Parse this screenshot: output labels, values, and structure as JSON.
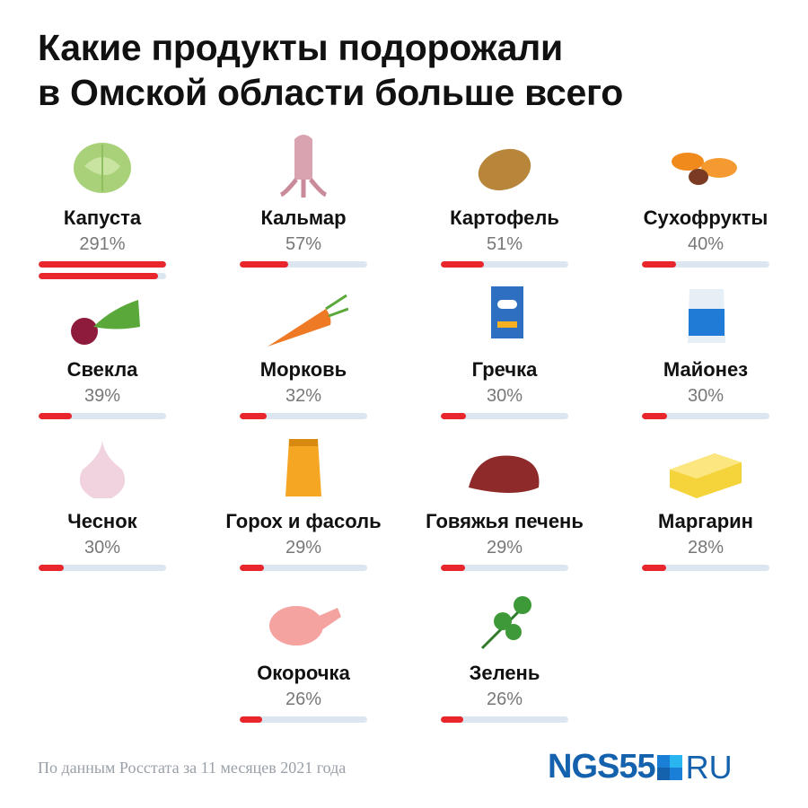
{
  "title_line1": "Какие продукты подорожали",
  "title_line2": "в Омской области больше всего",
  "footer": "По данным Росстата за 11 месяцев 2021 года",
  "logo": {
    "main": "NGS55",
    "suffix": "RU"
  },
  "colors": {
    "bar": "#e8262b",
    "track": "#dbe6f1",
    "brand": "#1461ad"
  },
  "chart_data": {
    "type": "bar",
    "title": "Какие продукты подорожали в Омской области больше всего",
    "bar_scale_max": 150,
    "categories": [
      "Капуста",
      "Кальмар",
      "Картофель",
      "Сухофрукты",
      "Свекла",
      "Морковь",
      "Гречка",
      "Майонез",
      "Чеснок",
      "Горох и фасоль",
      "Говяжья печень",
      "Маргарин",
      "Окорочка",
      "Зелень"
    ],
    "values": [
      291,
      57,
      51,
      40,
      39,
      32,
      30,
      30,
      30,
      29,
      29,
      28,
      26,
      26
    ],
    "labels": [
      "291%",
      "57%",
      "51%",
      "40%",
      "39%",
      "32%",
      "30%",
      "30%",
      "30%",
      "29%",
      "29%",
      "28%",
      "26%",
      "26%"
    ],
    "icons": [
      "cabbage-icon",
      "squid-icon",
      "potato-icon",
      "dried-fruit-icon",
      "beet-icon",
      "carrot-icon",
      "buckwheat-icon",
      "mayonnaise-icon",
      "garlic-icon",
      "beans-icon",
      "beef-liver-icon",
      "margarine-icon",
      "chicken-leg-icon",
      "greens-icon"
    ]
  }
}
